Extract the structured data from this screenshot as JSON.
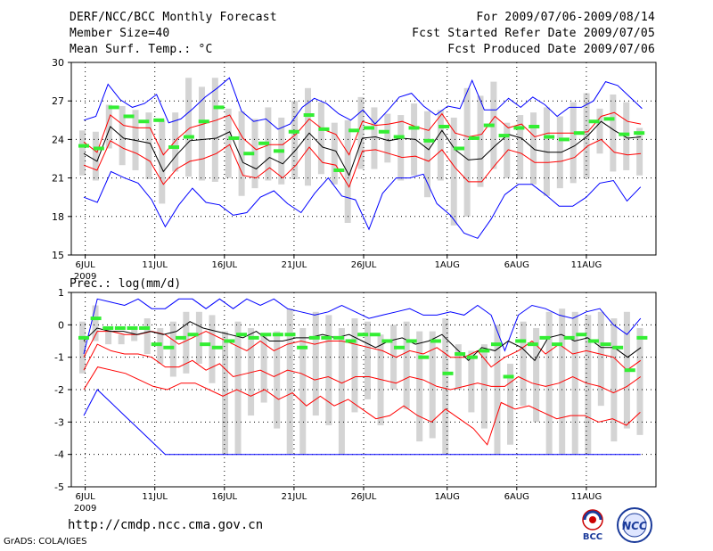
{
  "header": {
    "line1_left": "DERF/NCC/BCC Monthly Forecast",
    "line2_left": "Member Size=40",
    "line3_left": "Mean Surf. Temp.: °C",
    "line1_right": "For 2009/07/06-2009/08/14",
    "line2_right": "Fcst Started Refer Date 2009/07/05",
    "line3_right": "Fcst Produced Date 2009/07/06"
  },
  "footer": {
    "url": "http://cmdp.ncc.cma.gov.cn",
    "grads": "GrADS: COLA/IGES",
    "logo_bcc": "BCC",
    "logo_ncc": "NCC"
  },
  "colors": {
    "envelope_blue": "#0000ff",
    "spread_red": "#ff0000",
    "mean_black": "#000000",
    "bar_gray": "#d4d4d4",
    "marker_green": "#33ee33",
    "grid": "#000000"
  },
  "chart_data": [
    {
      "type": "line",
      "name": "temperature",
      "title": "Mean Surf. Temp.: °C",
      "xlabel": "",
      "ylabel": "",
      "x_tick_labels": [
        "6JUL",
        "11JUL",
        "16JUL",
        "21JUL",
        "26JUL",
        "1AUG",
        "6AUG",
        "11AUG"
      ],
      "x_tick_days": [
        1,
        6,
        11,
        16,
        21,
        27,
        32,
        37
      ],
      "year_label": "2009",
      "ylim": [
        15,
        30
      ],
      "yticks": [
        15,
        18,
        21,
        24,
        27,
        30
      ],
      "days": 40,
      "grid": true,
      "series": [
        {
          "name": "max",
          "color": "blue",
          "values": [
            25.5,
            25.8,
            28.3,
            27.1,
            26.5,
            26.8,
            27.5,
            25.3,
            25.6,
            26.4,
            27.3,
            28.0,
            28.8,
            26.2,
            25.4,
            25.6,
            24.8,
            25.2,
            26.5,
            27.2,
            26.8,
            26.0,
            25.5,
            26.3,
            25.2,
            26.2,
            27.3,
            27.6,
            26.6,
            25.9,
            26.6,
            26.4,
            28.6,
            26.3,
            26.3,
            27.2,
            26.5,
            27.3,
            26.7,
            25.8,
            26.5,
            26.5,
            27.0,
            28.5,
            28.2,
            27.3,
            26.4
          ]
        },
        {
          "name": "min",
          "color": "blue",
          "values": [
            19.5,
            19.1,
            21.5,
            21.0,
            20.6,
            19.3,
            17.2,
            18.9,
            20.2,
            19.1,
            18.9,
            18.1,
            18.3,
            19.5,
            20.0,
            19.0,
            18.3,
            19.8,
            21.0,
            19.6,
            19.3,
            17.0,
            19.8,
            21.0,
            21.0,
            21.3,
            19.0,
            18.1,
            16.7,
            16.3,
            17.8,
            19.7,
            20.5,
            20.5,
            19.7,
            18.8,
            18.8,
            19.5,
            20.6,
            20.8,
            19.2,
            20.3
          ]
        },
        {
          "name": "upper",
          "color": "red",
          "values": [
            23.8,
            23.0,
            25.9,
            25.1,
            24.9,
            24.9,
            22.8,
            24.0,
            24.9,
            25.2,
            25.5,
            25.9,
            24.1,
            23.2,
            23.6,
            23.6,
            24.4,
            25.6,
            24.8,
            24.4,
            22.8,
            25.4,
            25.1,
            25.2,
            25.4,
            25.0,
            24.7,
            26.0,
            24.5,
            24.2,
            24.4,
            25.8,
            24.9,
            25.2,
            24.2,
            24.5,
            24.5,
            24.5,
            24.6,
            25.8,
            26.1,
            25.4,
            25.2
          ]
        },
        {
          "name": "lower",
          "color": "red",
          "values": [
            22.0,
            21.6,
            23.9,
            23.3,
            22.9,
            22.3,
            20.5,
            21.7,
            22.3,
            22.5,
            22.9,
            23.6,
            21.2,
            21.0,
            21.8,
            21.0,
            22.0,
            23.4,
            22.2,
            22.0,
            20.3,
            23.1,
            23.2,
            22.9,
            22.6,
            22.7,
            22.3,
            23.2,
            21.8,
            20.7,
            20.7,
            22.0,
            23.2,
            22.9,
            22.2,
            22.2,
            22.3,
            22.6,
            23.5,
            24.0,
            23.0,
            22.8,
            22.9
          ]
        },
        {
          "name": "mean",
          "color": "black",
          "values": [
            22.9,
            22.3,
            25.0,
            24.1,
            23.9,
            23.7,
            21.5,
            22.8,
            23.9,
            24.0,
            24.1,
            24.6,
            22.2,
            21.7,
            22.6,
            22.1,
            23.2,
            24.5,
            23.4,
            23.1,
            21.2,
            24.1,
            24.2,
            23.9,
            24.1,
            24.0,
            23.2,
            24.7,
            23.2,
            22.4,
            22.5,
            23.5,
            24.4,
            24.1,
            23.2,
            23.0,
            23.0,
            23.5,
            24.3,
            25.4,
            24.7,
            24.1,
            24.2
          ]
        }
      ],
      "bars": {
        "name": "daily range",
        "low": [
          21.2,
          20.8,
          23.3,
          22.0,
          21.6,
          20.9,
          19.0,
          21.5,
          21.1,
          20.8,
          20.7,
          21.0,
          19.6,
          20.2,
          20.8,
          20.5,
          20.9,
          20.4,
          21.3,
          20.5,
          17.5,
          21.7,
          21.7,
          22.2,
          20.8,
          21.2,
          19.5,
          20.8,
          17.3,
          18.0,
          20.3,
          21.7,
          21.0,
          20.9,
          20.5,
          19.6,
          20.2,
          20.6,
          21.0,
          22.9,
          21.5,
          21.6,
          21.2
        ],
        "high": [
          24.7,
          24.6,
          26.7,
          26.6,
          26.3,
          26.1,
          25.5,
          26.1,
          28.8,
          28.1,
          28.8,
          26.4,
          26.2,
          25.6,
          26.5,
          25.7,
          27.0,
          28.0,
          26.9,
          25.3,
          25.5,
          27.3,
          26.5,
          26.0,
          25.9,
          26.8,
          26.2,
          26.3,
          25.7,
          28.0,
          27.4,
          28.5,
          25.3,
          25.9,
          26.1,
          26.5,
          25.8,
          26.9,
          27.6,
          26.4,
          27.5,
          26.9,
          24.9
        ]
      },
      "markers": {
        "name": "observed",
        "values": [
          23.5,
          23.3,
          26.5,
          25.8,
          25.4,
          25.5,
          23.4,
          24.2,
          25.4,
          26.5,
          24.1,
          22.9,
          23.7,
          23.1,
          24.6,
          25.9,
          24.8,
          21.6,
          24.7,
          24.9,
          24.6,
          24.2,
          24.9,
          23.9,
          25.0,
          23.3,
          24.1,
          25.1,
          24.3,
          24.9,
          25.0,
          24.2,
          24.0,
          24.5,
          25.4,
          25.6,
          24.4,
          24.5
        ]
      }
    },
    {
      "type": "line",
      "name": "precipitation",
      "title": "Prec.: log(mm/d)",
      "xlabel": "",
      "ylabel": "",
      "x_tick_labels": [
        "6JUL",
        "11JUL",
        "16JUL",
        "21JUL",
        "26JUL",
        "1AUG",
        "6AUG",
        "11AUG"
      ],
      "x_tick_days": [
        1,
        6,
        11,
        16,
        21,
        27,
        32,
        37
      ],
      "year_label": "2009",
      "ylim": [
        -5,
        1
      ],
      "yticks": [
        -5,
        -4,
        -3,
        -2,
        -1,
        0,
        1
      ],
      "days": 40,
      "grid": true,
      "series": [
        {
          "name": "max",
          "color": "blue",
          "values": [
            -0.9,
            0.8,
            0.7,
            0.6,
            0.8,
            0.5,
            0.5,
            0.8,
            0.8,
            0.5,
            0.8,
            0.5,
            0.8,
            0.6,
            0.8,
            0.5,
            0.4,
            0.3,
            0.4,
            0.6,
            0.4,
            0.2,
            0.3,
            0.4,
            0.5,
            0.3,
            0.3,
            0.4,
            0.3,
            0.6,
            0.3,
            -0.8,
            0.3,
            0.6,
            0.5,
            0.3,
            0.2,
            0.4,
            0.5,
            0.0,
            -0.3,
            0.2
          ]
        },
        {
          "name": "min",
          "color": "blue",
          "values": [
            -2.8,
            -2.0,
            -2.4,
            -2.8,
            -3.2,
            -3.6,
            -4.0,
            -4.0,
            -4.0,
            -4.0,
            -4.0,
            -4.0,
            -4.0,
            -4.0,
            -4.0,
            -4.0,
            -4.0,
            -4.0,
            -4.0,
            -4.0,
            -4.0,
            -4.0,
            -4.0,
            -4.0,
            -4.0,
            -4.0,
            -4.0,
            -4.0,
            -4.0,
            -4.0,
            -4.0,
            -4.0,
            -4.0,
            -4.0,
            -4.0,
            -4.0,
            -4.0,
            -4.0,
            -4.0,
            -4.0,
            -4.0,
            -4.0
          ]
        },
        {
          "name": "upper",
          "color": "red",
          "values": [
            -1.0,
            -0.2,
            -0.2,
            -0.3,
            -0.3,
            -0.2,
            -0.3,
            -0.6,
            -0.4,
            -0.2,
            -0.4,
            -0.6,
            -0.8,
            -0.5,
            -0.8,
            -0.6,
            -0.5,
            -0.6,
            -0.5,
            -0.5,
            -0.6,
            -0.7,
            -0.8,
            -1.0,
            -0.8,
            -0.9,
            -0.7,
            -1.0,
            -1.0,
            -0.8,
            -1.3,
            -1.0,
            -0.8,
            -0.5,
            -0.9,
            -0.6,
            -0.9,
            -0.8,
            -0.9,
            -1.0,
            -1.4,
            -1.1
          ]
        },
        {
          "name": "lower",
          "color": "red",
          "values": [
            -1.4,
            -0.6,
            -0.8,
            -0.9,
            -0.9,
            -1.0,
            -1.3,
            -1.3,
            -1.1,
            -1.4,
            -1.2,
            -1.6,
            -1.5,
            -1.4,
            -1.6,
            -1.4,
            -1.5,
            -1.7,
            -1.6,
            -1.8,
            -1.6,
            -1.6,
            -1.7,
            -1.8,
            -1.6,
            -1.7,
            -1.9,
            -2.0,
            -1.9,
            -1.8,
            -1.9,
            -1.9,
            -1.6,
            -1.8,
            -1.9,
            -1.8,
            -1.6,
            -1.8,
            -1.9,
            -2.1,
            -1.9,
            -1.6
          ]
        },
        {
          "name": "lowest",
          "color": "red",
          "values": [
            -2.0,
            -1.3,
            -1.4,
            -1.5,
            -1.7,
            -1.9,
            -2.0,
            -1.8,
            -1.8,
            -2.0,
            -2.2,
            -2.0,
            -2.2,
            -2.0,
            -2.3,
            -2.1,
            -2.5,
            -2.2,
            -2.5,
            -2.3,
            -2.6,
            -2.9,
            -2.8,
            -2.5,
            -2.8,
            -3.0,
            -2.6,
            -2.9,
            -3.2,
            -3.7,
            -2.4,
            -2.6,
            -2.5,
            -2.7,
            -2.9,
            -2.8,
            -2.8,
            -3.0,
            -2.9,
            -3.1,
            -2.7
          ]
        },
        {
          "name": "mean",
          "color": "black",
          "values": [
            -0.5,
            -0.1,
            -0.2,
            -0.2,
            -0.3,
            -0.2,
            -0.3,
            -0.2,
            0.1,
            -0.1,
            -0.2,
            -0.3,
            -0.4,
            -0.2,
            -0.5,
            -0.5,
            -0.4,
            -0.4,
            -0.3,
            -0.4,
            -0.3,
            -0.5,
            -0.7,
            -0.5,
            -0.4,
            -0.6,
            -0.5,
            -0.3,
            -0.7,
            -1.1,
            -0.7,
            -0.8,
            -0.5,
            -0.7,
            -1.1,
            -0.4,
            -0.3,
            -0.5,
            -0.4,
            -0.7,
            -0.7,
            -1.0,
            -0.7
          ]
        }
      ],
      "bars": {
        "name": "daily range",
        "low": [
          -1.5,
          -0.5,
          -0.6,
          -0.6,
          -0.5,
          -0.9,
          -1.2,
          -1.6,
          -1.5,
          -1.2,
          -1.8,
          -4.0,
          -4.0,
          -2.8,
          -2.4,
          -3.2,
          -4.0,
          -4.0,
          -2.8,
          -3.1,
          -4.0,
          -2.7,
          -2.3,
          -3.1,
          -2.0,
          -2.6,
          -3.6,
          -3.5,
          -4.0,
          -2.0,
          -2.7,
          -3.2,
          -4.0,
          -3.7,
          -2.5,
          -3.0,
          -4.0,
          -4.0,
          -4.0,
          -4.0,
          -2.5,
          -3.6,
          -3.2,
          -3.4
        ],
        "high": [
          0.1,
          0.6,
          -0.1,
          -0.3,
          -0.1,
          0.2,
          -0.1,
          0.1,
          0.4,
          0.4,
          0.3,
          -0.2,
          0.1,
          -0.1,
          -0.3,
          -0.2,
          0.5,
          -0.1,
          0.4,
          0.3,
          -0.1,
          0.2,
          0.1,
          -0.3,
          0.0,
          0.1,
          -0.2,
          -0.2,
          0.2,
          -0.6,
          -0.8,
          -0.6,
          0.0,
          -1.2,
          0.1,
          -0.1,
          0.4,
          0.5,
          0.4,
          0.3,
          0.4,
          0.2,
          0.4,
          -0.1
        ]
      },
      "markers": {
        "name": "observed",
        "values": [
          -0.4,
          0.2,
          -0.1,
          -0.1,
          -0.1,
          -0.1,
          -0.6,
          -0.7,
          -0.4,
          -0.3,
          -0.6,
          -0.7,
          -0.5,
          -0.3,
          -0.4,
          -0.3,
          -0.3,
          -0.3,
          -0.7,
          -0.4,
          -0.4,
          -0.4,
          -0.5,
          -0.3,
          -0.3,
          -0.5,
          -0.7,
          -0.5,
          -1.0,
          -0.5,
          -1.5,
          -0.9,
          -1.0,
          -0.8,
          -0.6,
          -1.6,
          -0.5,
          -0.6,
          -0.4,
          -0.6,
          -0.4,
          -0.3,
          -0.5,
          -0.6,
          -0.7,
          -1.4,
          -0.4
        ]
      }
    }
  ]
}
